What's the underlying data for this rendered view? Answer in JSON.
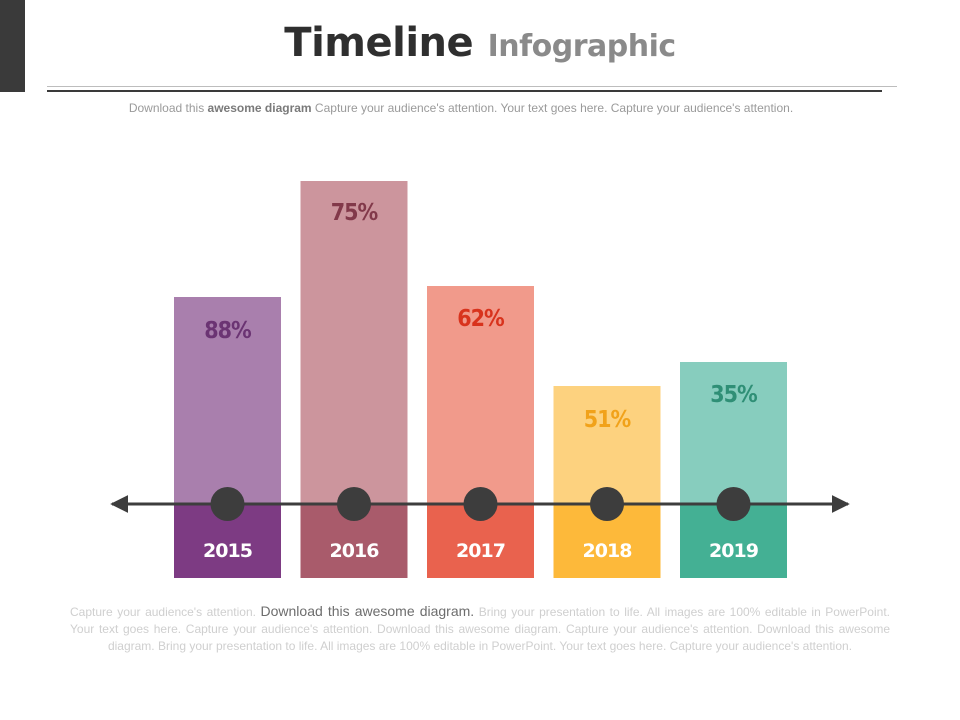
{
  "title": {
    "main": "Timeline",
    "sub": "Infographic"
  },
  "subtitle": {
    "prefix": "Download this ",
    "bold": "awesome diagram",
    "suffix": " Capture your audience's attention. Your text goes here. Capture your audience's attention."
  },
  "body_text": {
    "part1": "Capture your audience's attention. ",
    "emphasis": "Download this  awesome diagram.",
    "part2": " Bring your presentation to life. All images are 100% editable in PowerPoint.  Your text goes here. Capture your audience's attention. Download this awesome diagram. Capture your audience's attention. Download this awesome diagram. Bring your presentation to life. All images are 100% editable in PowerPoint.  Your text goes here. Capture your audience's attention."
  },
  "chart_data": {
    "type": "bar",
    "categories": [
      "2015",
      "2016",
      "2017",
      "2018",
      "2019"
    ],
    "values": [
      88,
      75,
      62,
      51,
      35
    ],
    "value_labels": [
      "88%",
      "75%",
      "62%",
      "51%",
      "35%"
    ],
    "colors": {
      "top": [
        "#a97fad",
        "#cc959d",
        "#f19a8b",
        "#fdd27f",
        "#87cdbe"
      ],
      "bottom": [
        "#7d3b83",
        "#a95b6b",
        "#e9624e",
        "#fdb93a",
        "#44b094"
      ],
      "label": [
        "#6b3473",
        "#82394a",
        "#d8331d",
        "#f1a21a",
        "#2f8f76"
      ]
    },
    "timeline_color": "#3d3d3d"
  }
}
